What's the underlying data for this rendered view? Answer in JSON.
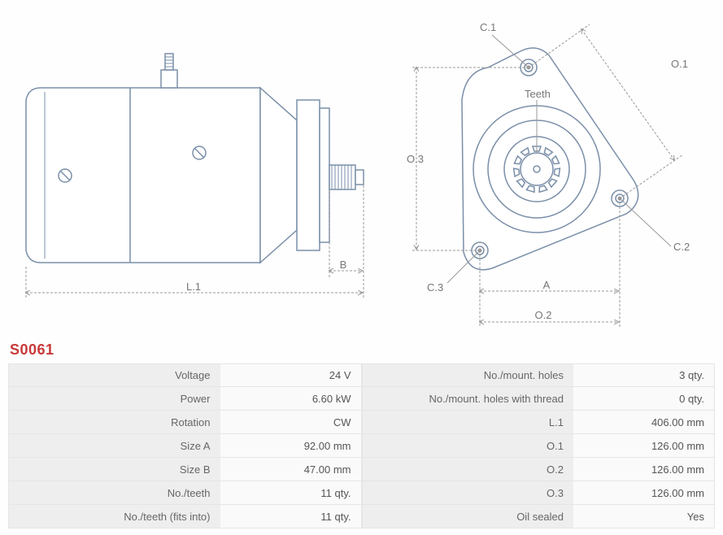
{
  "part_number": "S0061",
  "colors": {
    "part_title": "#c83838",
    "drawing_stroke": "#7a8fa8",
    "dimension_stroke": "#999999",
    "label_text": "#777777",
    "table_label_bg": "#eeeeee",
    "table_value_bg": "#fafafa",
    "table_border": "#e5e5e5",
    "table_text": "#666666"
  },
  "diagram_left": {
    "labels": {
      "L1": "L.1",
      "B": "B"
    }
  },
  "diagram_right": {
    "labels": {
      "C1": "C.1",
      "C2": "C.2",
      "C3": "C.3",
      "O1": "O.1",
      "O2": "O.2",
      "O3": "O.3",
      "A": "A",
      "Teeth": "Teeth"
    }
  },
  "specs_left": [
    {
      "label": "Voltage",
      "value": "24 V"
    },
    {
      "label": "Power",
      "value": "6.60 kW"
    },
    {
      "label": "Rotation",
      "value": "CW"
    },
    {
      "label": "Size A",
      "value": "92.00 mm"
    },
    {
      "label": "Size B",
      "value": "47.00 mm"
    },
    {
      "label": "No./teeth",
      "value": "11 qty."
    },
    {
      "label": "No./teeth (fits into)",
      "value": "11 qty."
    }
  ],
  "specs_right": [
    {
      "label": "No./mount. holes",
      "value": "3 qty."
    },
    {
      "label": "No./mount. holes with thread",
      "value": "0 qty."
    },
    {
      "label": "L.1",
      "value": "406.00 mm"
    },
    {
      "label": "O.1",
      "value": "126.00 mm"
    },
    {
      "label": "O.2",
      "value": "126.00 mm"
    },
    {
      "label": "O.3",
      "value": "126.00 mm"
    },
    {
      "label": "Oil sealed",
      "value": "Yes"
    }
  ]
}
